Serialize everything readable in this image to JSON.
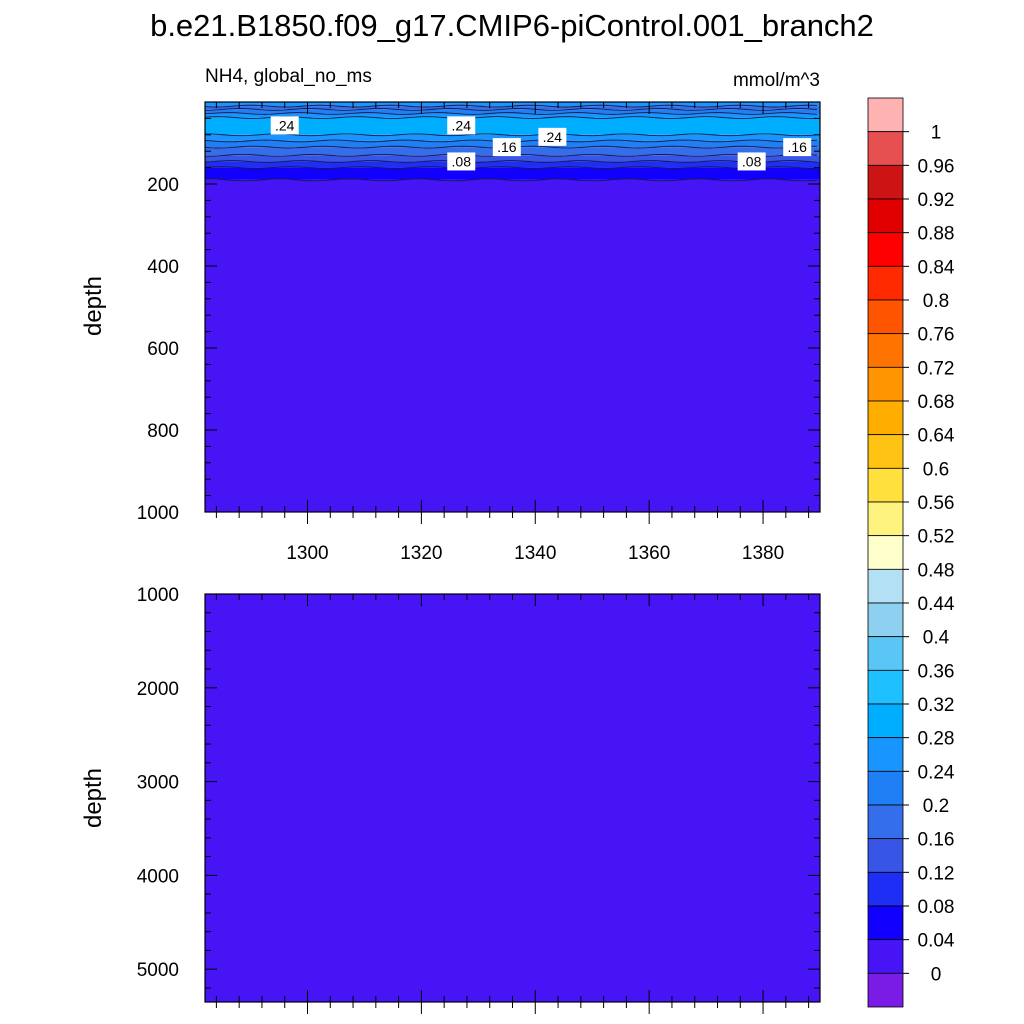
{
  "title": "b.e21.B1850.f09_g17.CMIP6-piControl.001_branch2",
  "chart_data": [
    {
      "type": "contour",
      "left_label": "NH4, global_no_ms",
      "right_label": "mmol/m^3",
      "ylabel": "depth",
      "xlim": [
        1282,
        1390
      ],
      "ylim": [
        0,
        1000
      ],
      "y_reversed": true,
      "x_ticks": [
        1300,
        1320,
        1340,
        1360,
        1380
      ],
      "y_ticks": [
        200,
        400,
        600,
        800,
        1000
      ],
      "bands": [
        {
          "from_depth": 0,
          "to_depth": 10,
          "value": 0.24
        },
        {
          "from_depth": 10,
          "to_depth": 18,
          "value": 0.16
        },
        {
          "from_depth": 18,
          "to_depth": 28,
          "value": 0.2
        },
        {
          "from_depth": 28,
          "to_depth": 38,
          "value": 0.24
        },
        {
          "from_depth": 38,
          "to_depth": 80,
          "value": 0.28
        },
        {
          "from_depth": 80,
          "to_depth": 95,
          "value": 0.24
        },
        {
          "from_depth": 95,
          "to_depth": 110,
          "value": 0.2
        },
        {
          "from_depth": 110,
          "to_depth": 130,
          "value": 0.16
        },
        {
          "from_depth": 130,
          "to_depth": 145,
          "value": 0.12
        },
        {
          "from_depth": 145,
          "to_depth": 160,
          "value": 0.08
        },
        {
          "from_depth": 160,
          "to_depth": 190,
          "value": 0.04
        },
        {
          "from_depth": 190,
          "to_depth": 1000,
          "value": 0.0
        }
      ],
      "contour_labels": [
        {
          "text": ".24",
          "x": 1296,
          "depth": 57
        },
        {
          "text": ".24",
          "x": 1327,
          "depth": 57
        },
        {
          "text": ".24",
          "x": 1343,
          "depth": 85
        },
        {
          "text": ".16",
          "x": 1335,
          "depth": 110
        },
        {
          "text": ".16",
          "x": 1386,
          "depth": 110
        },
        {
          "text": ".08",
          "x": 1327,
          "depth": 145
        },
        {
          "text": ".08",
          "x": 1378,
          "depth": 145
        }
      ]
    },
    {
      "type": "contour",
      "ylabel": "depth",
      "xlim": [
        1282,
        1390
      ],
      "ylim": [
        1000,
        5350
      ],
      "y_reversed": true,
      "y_ticks": [
        1000,
        2000,
        3000,
        4000,
        5000
      ],
      "bands": [
        {
          "from_depth": 1000,
          "to_depth": 5350,
          "value": 0.0
        }
      ]
    }
  ],
  "colorbar": {
    "labels": [
      "1",
      "0.96",
      "0.92",
      "0.88",
      "0.84",
      "0.8",
      "0.76",
      "0.72",
      "0.68",
      "0.64",
      "0.6",
      "0.56",
      "0.52",
      "0.48",
      "0.44",
      "0.4",
      "0.36",
      "0.32",
      "0.28",
      "0.24",
      "0.2",
      "0.16",
      "0.12",
      "0.08",
      "0.04",
      "0"
    ],
    "colors": [
      "#ffb2b2",
      "#e65050",
      "#cc1414",
      "#e00000",
      "#ff0000",
      "#ff2a00",
      "#ff5500",
      "#ff7300",
      "#ff9500",
      "#ffae00",
      "#ffc314",
      "#ffe03c",
      "#fff380",
      "#ffffcc",
      "#b4e0f5",
      "#8ed0f0",
      "#5ac6f5",
      "#1ec0ff",
      "#00aeff",
      "#1995ff",
      "#1f7ff5",
      "#356eeb",
      "#3856e6",
      "#1f2ef5",
      "#1200ff",
      "#4614f5",
      "#7a1ce6"
    ]
  }
}
